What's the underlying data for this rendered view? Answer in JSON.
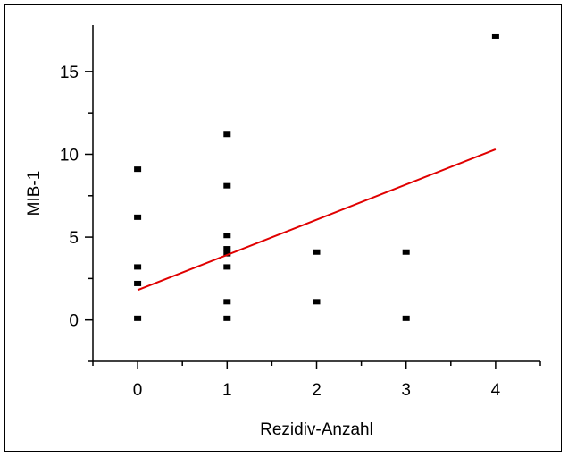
{
  "chart_data": {
    "type": "scatter",
    "xlabel": "Rezidiv-Anzahl",
    "ylabel": "MIB-1",
    "xlim": [
      -0.5,
      4.5
    ],
    "ylim": [
      -2.5,
      17.8
    ],
    "x_ticks": [
      0,
      1,
      2,
      3,
      4
    ],
    "y_ticks": [
      0,
      5,
      10,
      15
    ],
    "x_minor_ticks": [
      -0.5,
      0.5,
      1.5,
      2.5,
      3.5,
      4.5
    ],
    "y_minor_ticks": [
      -2.5,
      2.5,
      7.5,
      12.5
    ],
    "grid": false,
    "series": [
      {
        "type": "scatter",
        "color": "#000000",
        "points": [
          {
            "x": 0,
            "y": 9.1
          },
          {
            "x": 0,
            "y": 6.2
          },
          {
            "x": 0,
            "y": 3.2
          },
          {
            "x": 0,
            "y": 2.2
          },
          {
            "x": 0,
            "y": 0.1
          },
          {
            "x": 1,
            "y": 11.2
          },
          {
            "x": 1,
            "y": 8.1
          },
          {
            "x": 1,
            "y": 5.1
          },
          {
            "x": 1,
            "y": 4.3
          },
          {
            "x": 1,
            "y": 4.0
          },
          {
            "x": 1,
            "y": 3.2
          },
          {
            "x": 1,
            "y": 1.1
          },
          {
            "x": 1,
            "y": 0.1
          },
          {
            "x": 2,
            "y": 4.1
          },
          {
            "x": 2,
            "y": 1.1
          },
          {
            "x": 3,
            "y": 4.1
          },
          {
            "x": 3,
            "y": 0.1
          },
          {
            "x": 4,
            "y": 17.1
          }
        ]
      },
      {
        "type": "line",
        "color": "#e00000",
        "points": [
          {
            "x": 0,
            "y": 1.8
          },
          {
            "x": 4,
            "y": 10.3
          }
        ]
      }
    ]
  }
}
